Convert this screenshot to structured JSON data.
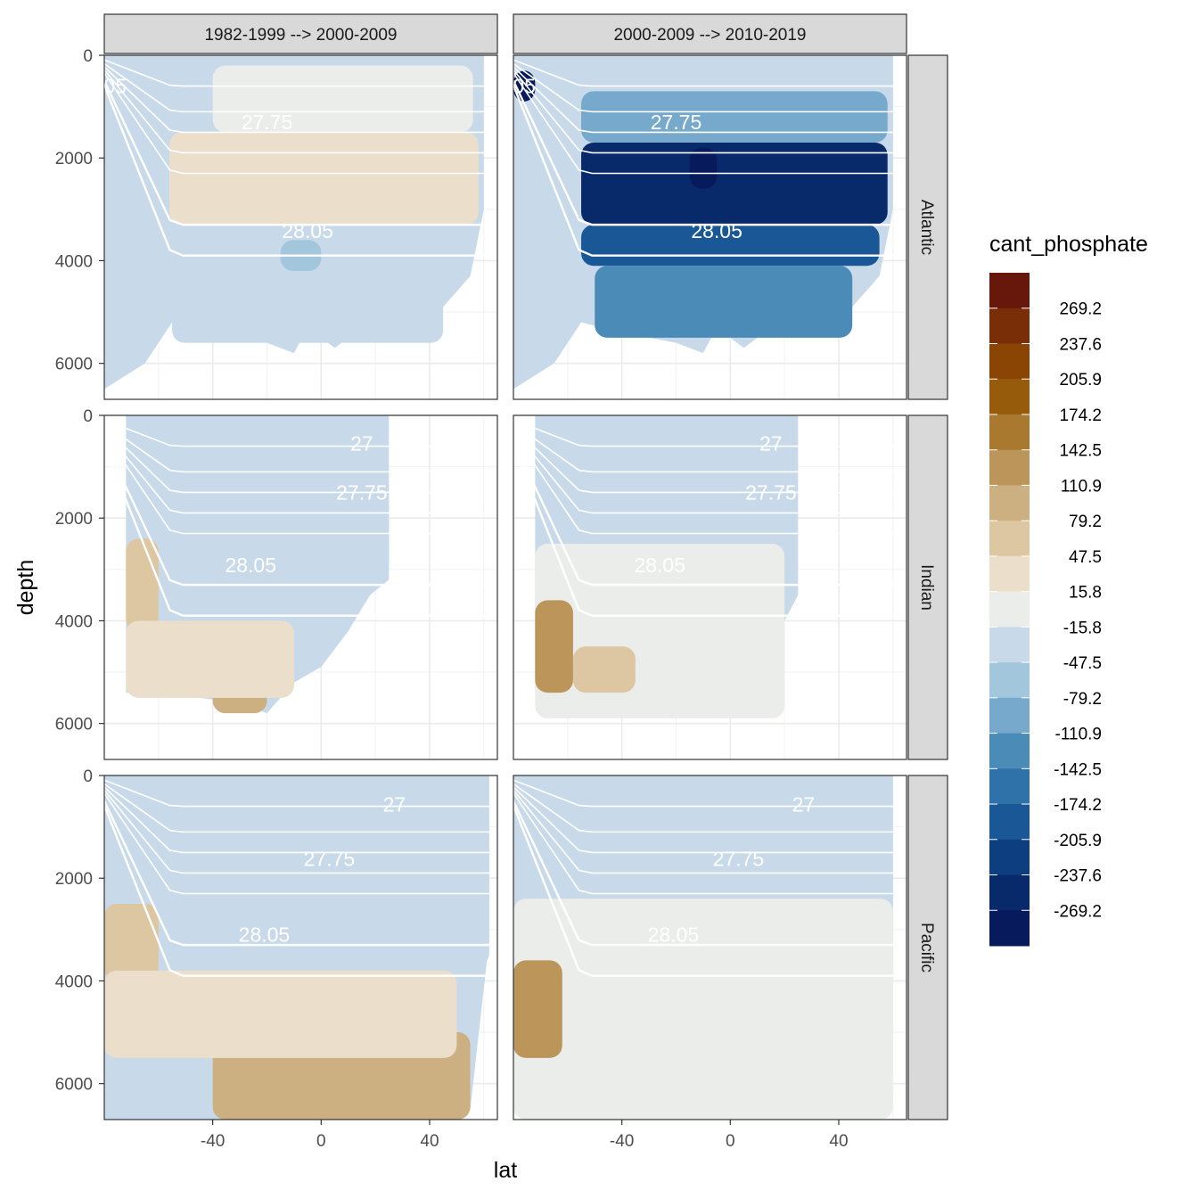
{
  "chart_data": {
    "type": "heatmap",
    "title": "",
    "xlabel": "lat",
    "ylabel": "depth",
    "xlim": [
      -80,
      65
    ],
    "ylim": [
      6700,
      0
    ],
    "x_ticks": [
      -40,
      0,
      40
    ],
    "x_tick_labels": [
      "-40",
      "0",
      "40"
    ],
    "y_ticks": [
      0,
      2000,
      4000,
      6000
    ],
    "y_tick_labels": [
      "0",
      "2000",
      "4000",
      "6000"
    ],
    "columns": [
      "1982-1999 --> 2000-2009",
      "2000-2009 --> 2010-2019"
    ],
    "rows": [
      "Atlantic",
      "Indian",
      "Pacific"
    ],
    "legend": {
      "title": "cant_phosphate",
      "position": "right",
      "breaks": [
        "269.2",
        "237.6",
        "205.9",
        "174.2",
        "142.5",
        "110.9",
        "79.2",
        "47.5",
        "15.8",
        "-15.8",
        "-47.5",
        "-79.2",
        "-110.9",
        "-142.5",
        "-174.2",
        "-205.9",
        "-237.6",
        "-269.2"
      ],
      "colors": [
        "#67180a",
        "#7a2e08",
        "#8a4504",
        "#965c0c",
        "#a8792e",
        "#bb955a",
        "#cdb081",
        "#ddc7a2",
        "#ebdfcb",
        "#ebedeb",
        "#c8daea",
        "#a2c6dc",
        "#76a9cb",
        "#4a8bb8",
        "#2f72aa",
        "#1a5796",
        "#0d3f80",
        "#08296a",
        "#061a5c"
      ]
    },
    "isopycnal_labels": [
      {
        "row": 0,
        "col": 0,
        "text": "27.75",
        "lat": -20,
        "depth": 1300
      },
      {
        "row": 0,
        "col": 0,
        "text": "28.05",
        "lat": -5,
        "depth": 3420
      },
      {
        "row": 0,
        "col": 0,
        "text": "05",
        "lat": -76,
        "depth": 600
      },
      {
        "row": 0,
        "col": 1,
        "text": "27.75",
        "lat": -20,
        "depth": 1300
      },
      {
        "row": 0,
        "col": 1,
        "text": "28.05",
        "lat": -5,
        "depth": 3420
      },
      {
        "row": 0,
        "col": 1,
        "text": "05",
        "lat": -76,
        "depth": 600
      },
      {
        "row": 1,
        "col": 0,
        "text": "27.75",
        "lat": 15,
        "depth": 1500
      },
      {
        "row": 1,
        "col": 0,
        "text": "28.05",
        "lat": -26,
        "depth": 2920
      },
      {
        "row": 1,
        "col": 0,
        "text": "27",
        "lat": 15,
        "depth": 550
      },
      {
        "row": 1,
        "col": 1,
        "text": "27.75",
        "lat": 15,
        "depth": 1500
      },
      {
        "row": 1,
        "col": 1,
        "text": "28.05",
        "lat": -26,
        "depth": 2920
      },
      {
        "row": 1,
        "col": 1,
        "text": "27",
        "lat": 15,
        "depth": 550
      },
      {
        "row": 2,
        "col": 0,
        "text": "27.75",
        "lat": 3,
        "depth": 1620
      },
      {
        "row": 2,
        "col": 0,
        "text": "28.05",
        "lat": -21,
        "depth": 3100
      },
      {
        "row": 2,
        "col": 0,
        "text": "27",
        "lat": 27,
        "depth": 560
      },
      {
        "row": 2,
        "col": 1,
        "text": "27.75",
        "lat": 3,
        "depth": 1620
      },
      {
        "row": 2,
        "col": 1,
        "text": "28.05",
        "lat": -21,
        "depth": 3100
      },
      {
        "row": 2,
        "col": 1,
        "text": "27",
        "lat": 27,
        "depth": 560
      }
    ],
    "panels": [
      {
        "row": 0,
        "col": 0,
        "basin": "Atlantic",
        "bottom_depth": [
          [
            -80,
            6500
          ],
          [
            -65,
            6000
          ],
          [
            -55,
            5200
          ],
          [
            -40,
            5400
          ],
          [
            -20,
            5600
          ],
          [
            -10,
            5800
          ],
          [
            -5,
            5300
          ],
          [
            5,
            5700
          ],
          [
            15,
            5300
          ],
          [
            25,
            5500
          ],
          [
            35,
            5200
          ],
          [
            45,
            4900
          ],
          [
            55,
            4300
          ],
          [
            60,
            3000
          ]
        ],
        "regions": [
          {
            "value_bin": "47.5",
            "lat": [
              -56,
              58
            ],
            "depth": [
              1500,
              3300
            ]
          },
          {
            "value_bin": "15.8",
            "lat": [
              -40,
              56
            ],
            "depth": [
              200,
              1500
            ]
          },
          {
            "value_bin": "-15.8",
            "lat": [
              -55,
              45
            ],
            "depth": [
              3300,
              5600
            ]
          },
          {
            "value_bin": "-47.5",
            "lat": [
              -15,
              0
            ],
            "depth": [
              3600,
              4200
            ]
          }
        ]
      },
      {
        "row": 0,
        "col": 1,
        "basin": "Atlantic",
        "bottom_depth": [
          [
            -80,
            6500
          ],
          [
            -65,
            6000
          ],
          [
            -55,
            5200
          ],
          [
            -40,
            5400
          ],
          [
            -20,
            5600
          ],
          [
            -10,
            5800
          ],
          [
            -5,
            5300
          ],
          [
            5,
            5700
          ],
          [
            15,
            5300
          ],
          [
            25,
            5500
          ],
          [
            35,
            5200
          ],
          [
            45,
            4900
          ],
          [
            55,
            4300
          ],
          [
            60,
            3000
          ]
        ],
        "regions": [
          {
            "value_bin": "-237.6",
            "lat": [
              -55,
              58
            ],
            "depth": [
              1700,
              3300
            ]
          },
          {
            "value_bin": "-269.2",
            "lat": [
              -15,
              -5
            ],
            "depth": [
              1800,
              2600
            ]
          },
          {
            "value_bin": "-174.2",
            "lat": [
              -55,
              55
            ],
            "depth": [
              3300,
              4100
            ]
          },
          {
            "value_bin": "-110.9",
            "lat": [
              -50,
              45
            ],
            "depth": [
              4100,
              5500
            ]
          },
          {
            "value_bin": "-79.2",
            "lat": [
              -55,
              58
            ],
            "depth": [
              700,
              1700
            ]
          },
          {
            "value_bin": "-269.2",
            "lat": [
              -80,
              -72
            ],
            "depth": [
              300,
              900
            ]
          }
        ]
      },
      {
        "row": 1,
        "col": 0,
        "basin": "Indian",
        "bottom_depth": [
          [
            -72,
            5400
          ],
          [
            -60,
            5400
          ],
          [
            -45,
            5500
          ],
          [
            -30,
            5600
          ],
          [
            -20,
            5800
          ],
          [
            -10,
            5200
          ],
          [
            0,
            4900
          ],
          [
            10,
            4200
          ],
          [
            18,
            3500
          ],
          [
            25,
            3200
          ]
        ],
        "regions": [
          {
            "value_bin": "-15.8",
            "lat": [
              -55,
              25
            ],
            "depth": [
              1500,
              3200
            ]
          },
          {
            "value_bin": "79.2",
            "lat": [
              -72,
              -60
            ],
            "depth": [
              2400,
              4200
            ]
          },
          {
            "value_bin": "110.9",
            "lat": [
              -40,
              -20
            ],
            "depth": [
              4500,
              5800
            ]
          },
          {
            "value_bin": "47.5",
            "lat": [
              -72,
              -10
            ],
            "depth": [
              4000,
              5500
            ]
          }
        ]
      },
      {
        "row": 1,
        "col": 1,
        "basin": "Indian",
        "bottom_depth": [
          [
            -72,
            5400
          ],
          [
            -60,
            5400
          ],
          [
            -45,
            5500
          ],
          [
            -30,
            5600
          ],
          [
            -10,
            5900
          ],
          [
            0,
            5300
          ],
          [
            10,
            4800
          ],
          [
            20,
            4000
          ],
          [
            25,
            3500
          ]
        ],
        "regions": [
          {
            "value_bin": "15.8",
            "lat": [
              -72,
              20
            ],
            "depth": [
              2500,
              5900
            ]
          },
          {
            "value_bin": "142.5",
            "lat": [
              -72,
              -58
            ],
            "depth": [
              3600,
              5400
            ]
          },
          {
            "value_bin": "79.2",
            "lat": [
              -58,
              -35
            ],
            "depth": [
              4500,
              5400
            ]
          }
        ]
      },
      {
        "row": 2,
        "col": 0,
        "basin": "Pacific",
        "bottom_depth": [
          [
            -80,
            6700
          ],
          [
            -60,
            6700
          ],
          [
            -40,
            6700
          ],
          [
            -20,
            6700
          ],
          [
            0,
            6700
          ],
          [
            20,
            6700
          ],
          [
            40,
            6700
          ],
          [
            55,
            6500
          ],
          [
            62,
            3200
          ]
        ],
        "regions": [
          {
            "value_bin": "-15.8",
            "lat": [
              -60,
              62
            ],
            "depth": [
              1200,
              3700
            ]
          },
          {
            "value_bin": "79.2",
            "lat": [
              -80,
              -60
            ],
            "depth": [
              2500,
              4000
            ]
          },
          {
            "value_bin": "110.9",
            "lat": [
              -40,
              55
            ],
            "depth": [
              5000,
              6700
            ]
          },
          {
            "value_bin": "47.5",
            "lat": [
              -80,
              50
            ],
            "depth": [
              3800,
              5500
            ]
          }
        ]
      },
      {
        "row": 2,
        "col": 1,
        "basin": "Pacific",
        "bottom_depth": [
          [
            -80,
            5500
          ],
          [
            -60,
            5500
          ],
          [
            -40,
            6700
          ],
          [
            -20,
            6700
          ],
          [
            0,
            6700
          ],
          [
            20,
            6700
          ],
          [
            40,
            6700
          ],
          [
            55,
            6000
          ],
          [
            60,
            3700
          ]
        ],
        "regions": [
          {
            "value_bin": "15.8",
            "lat": [
              -80,
              60
            ],
            "depth": [
              2400,
              6700
            ]
          },
          {
            "value_bin": "142.5",
            "lat": [
              -80,
              -62
            ],
            "depth": [
              3600,
              5500
            ]
          },
          {
            "value_bin": "-15.8",
            "lat": [
              -30,
              33
            ],
            "depth": [
              1100,
              1900
            ]
          }
        ]
      }
    ]
  }
}
